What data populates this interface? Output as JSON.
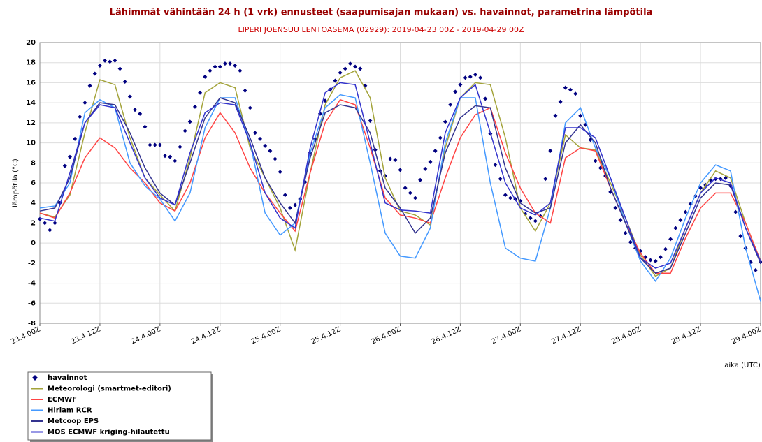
{
  "chart_data": {
    "type": "line",
    "title": "Lähimmät vähintään 24 h (1 vrk) ennusteet (saapumisajan mukaan) vs. havainnot, parametrina lämpötila",
    "subtitle": "LIPERI JOENSUU LENTOASEMA (02929): 2019-04-23 00Z - 2019-04-29 00Z",
    "ylabel": "lämpötila (°C)",
    "xlabel": "aika (UTC)",
    "grid": true,
    "xlim": [
      0,
      144
    ],
    "ylim": [
      -8,
      20
    ],
    "yticks": [
      -8,
      -6,
      -4,
      -2,
      0,
      2,
      4,
      6,
      8,
      10,
      12,
      14,
      16,
      18,
      20
    ],
    "xticks": [
      {
        "value": 0,
        "label": "23.4.00Z"
      },
      {
        "value": 12,
        "label": "23.4.12Z"
      },
      {
        "value": 24,
        "label": "24.4.00Z"
      },
      {
        "value": 36,
        "label": "24.4.12Z"
      },
      {
        "value": 48,
        "label": "25.4.00Z"
      },
      {
        "value": 60,
        "label": "25.4.12Z"
      },
      {
        "value": 72,
        "label": "26.4.00Z"
      },
      {
        "value": 84,
        "label": "26.4.12Z"
      },
      {
        "value": 96,
        "label": "27.4.00Z"
      },
      {
        "value": 108,
        "label": "27.4.12Z"
      },
      {
        "value": 120,
        "label": "28.4.00Z"
      },
      {
        "value": 132,
        "label": "28.4.12Z"
      },
      {
        "value": 144,
        "label": "29.4.00Z"
      }
    ],
    "x": [
      0,
      3,
      6,
      9,
      12,
      15,
      18,
      21,
      24,
      27,
      30,
      33,
      36,
      39,
      42,
      45,
      48,
      51,
      54,
      57,
      60,
      63,
      66,
      69,
      72,
      75,
      78,
      81,
      84,
      87,
      90,
      93,
      96,
      99,
      102,
      105,
      108,
      111,
      114,
      117,
      120,
      123,
      126,
      129,
      132,
      135,
      138,
      141,
      144
    ],
    "series": [
      {
        "name": "havainnot",
        "type": "scatter",
        "color": "#000080",
        "x": [
          0,
          1,
          2,
          3,
          4,
          5,
          6,
          7,
          8,
          9,
          10,
          11,
          12,
          13,
          14,
          15,
          16,
          17,
          18,
          19,
          20,
          21,
          22,
          23,
          24,
          25,
          26,
          27,
          28,
          29,
          30,
          31,
          32,
          33,
          34,
          35,
          36,
          37,
          38,
          39,
          40,
          41,
          42,
          43,
          44,
          45,
          46,
          47,
          48,
          49,
          50,
          51,
          52,
          53,
          54,
          55,
          56,
          57,
          58,
          59,
          60,
          61,
          62,
          63,
          64,
          65,
          66,
          67,
          68,
          69,
          70,
          71,
          72,
          73,
          74,
          75,
          76,
          77,
          78,
          79,
          80,
          81,
          82,
          83,
          84,
          85,
          86,
          87,
          88,
          89,
          90,
          91,
          92,
          93,
          94,
          95,
          96,
          97,
          98,
          99,
          100,
          101,
          102,
          103,
          104,
          105,
          106,
          107,
          108,
          109,
          110,
          111,
          112,
          113,
          114,
          115,
          116,
          117,
          118,
          119,
          120,
          121,
          122,
          123,
          124,
          125,
          126,
          127,
          128,
          129,
          130,
          131,
          132,
          133,
          134,
          135,
          136,
          137,
          138,
          139,
          140,
          141,
          142,
          143,
          144
        ],
        "values": [
          2.4,
          2.0,
          1.3,
          2.0,
          4.0,
          7.7,
          8.6,
          10.4,
          12.6,
          14.0,
          15.7,
          16.9,
          17.7,
          18.2,
          18.1,
          18.2,
          17.4,
          16.1,
          14.6,
          13.3,
          12.9,
          11.6,
          9.8,
          9.8,
          9.8,
          8.7,
          8.6,
          8.2,
          9.6,
          11.2,
          12.1,
          13.6,
          15.0,
          16.6,
          17.2,
          17.6,
          17.6,
          17.9,
          17.9,
          17.7,
          17.2,
          15.2,
          13.5,
          11.0,
          10.4,
          9.7,
          9.2,
          8.4,
          7.1,
          4.8,
          3.5,
          3.8,
          4.4,
          6.1,
          9.0,
          10.4,
          12.9,
          14.2,
          15.3,
          16.2,
          17.0,
          17.4,
          17.9,
          17.6,
          17.4,
          15.7,
          12.2,
          9.3,
          7.2,
          6.7,
          8.4,
          8.3,
          7.3,
          5.5,
          5.0,
          4.5,
          6.3,
          7.4,
          8.1,
          9.2,
          10.5,
          12.1,
          13.8,
          15.1,
          15.8,
          16.5,
          16.6,
          16.8,
          16.5,
          14.4,
          10.9,
          7.8,
          6.4,
          4.8,
          4.5,
          4.4,
          4.2,
          2.9,
          2.5,
          2.2,
          2.7,
          6.4,
          9.2,
          12.7,
          14.1,
          15.5,
          15.3,
          14.9,
          12.7,
          11.8,
          10.3,
          8.2,
          7.5,
          6.7,
          5.1,
          3.5,
          2.3,
          1.0,
          0.1,
          -0.5,
          -0.8,
          -1.4,
          -1.7,
          -1.8,
          -1.4,
          -0.6,
          0.4,
          1.5,
          2.3,
          3.1,
          3.9,
          4.7,
          5.5,
          5.8,
          6.3,
          6.4,
          6.4,
          6.5,
          5.7,
          3.1,
          0.7,
          -0.5,
          -1.9,
          -2.7,
          -1.9
        ]
      },
      {
        "name": "Meteorologi (smartmet-editori)",
        "color": "#a3a33a",
        "values": [
          3.0,
          2.6,
          4.8,
          11.0,
          16.3,
          15.8,
          10.5,
          6.5,
          4.8,
          3.2,
          8.5,
          15.0,
          16.0,
          15.5,
          9.5,
          6.5,
          3.5,
          -0.7,
          7.0,
          13.8,
          16.5,
          17.2,
          14.5,
          6.5,
          3.2,
          2.8,
          1.8,
          9.5,
          14.5,
          16.0,
          15.8,
          10.5,
          3.5,
          1.2,
          4.0,
          10.8,
          9.5,
          9.3,
          6.0,
          2.5,
          -1.2,
          -3.3,
          -2.5,
          1.5,
          5.0,
          7.2,
          6.5,
          2.0,
          -1.8
        ]
      },
      {
        "name": "ECMWF",
        "color": "#ff4444",
        "values": [
          3.0,
          2.5,
          5.0,
          8.5,
          10.5,
          9.5,
          7.5,
          6.0,
          4.0,
          3.2,
          6.0,
          10.5,
          13.0,
          11.0,
          7.5,
          5.0,
          3.0,
          1.2,
          7.0,
          12.0,
          14.3,
          13.8,
          9.5,
          4.5,
          2.8,
          2.5,
          2.0,
          6.5,
          10.5,
          12.8,
          13.5,
          9.0,
          5.5,
          3.0,
          2.0,
          8.5,
          9.5,
          9.2,
          5.5,
          2.0,
          -1.0,
          -3.0,
          -3.0,
          0.5,
          3.5,
          5.0,
          5.0,
          2.0,
          -1.8
        ]
      },
      {
        "name": "Hirlam RCR",
        "color": "#4499ff",
        "values": [
          3.5,
          3.7,
          6.0,
          13.0,
          14.3,
          13.5,
          8.0,
          5.7,
          4.4,
          2.2,
          5.0,
          11.5,
          14.5,
          14.5,
          10.0,
          3.0,
          0.8,
          2.0,
          9.0,
          13.5,
          14.8,
          14.5,
          8.0,
          1.0,
          -1.3,
          -1.5,
          1.5,
          10.0,
          14.5,
          14.5,
          6.0,
          -0.5,
          -1.5,
          -1.8,
          3.5,
          12.0,
          13.5,
          9.5,
          6.5,
          2.0,
          -1.8,
          -3.8,
          -1.5,
          2.5,
          6.0,
          7.8,
          7.2,
          -0.5,
          -5.8
        ]
      },
      {
        "name": "Metcoop EPS",
        "color": "#33338f",
        "values": [
          3.2,
          3.5,
          6.5,
          12.0,
          14.0,
          13.8,
          11.0,
          7.5,
          5.0,
          3.8,
          8.0,
          12.5,
          14.5,
          14.0,
          10.5,
          6.5,
          4.0,
          2.0,
          8.5,
          13.0,
          13.8,
          13.5,
          11.0,
          5.5,
          3.5,
          1.0,
          2.5,
          9.0,
          12.5,
          13.7,
          13.5,
          7.5,
          4.0,
          3.0,
          3.5,
          10.0,
          11.8,
          10.0,
          5.5,
          2.0,
          -1.5,
          -3.0,
          -2.5,
          1.0,
          4.5,
          6.0,
          5.8,
          1.5,
          -2.0
        ]
      },
      {
        "name": "MOS ECMWF kriging-hilautettu",
        "color": "#3333cc",
        "values": [
          2.5,
          2.2,
          7.0,
          12.0,
          13.8,
          13.5,
          10.0,
          6.5,
          4.5,
          3.8,
          9.0,
          13.0,
          14.0,
          13.8,
          10.0,
          5.0,
          2.5,
          1.5,
          9.5,
          15.0,
          16.0,
          15.8,
          10.0,
          4.0,
          3.3,
          3.2,
          3.0,
          11.0,
          14.5,
          15.8,
          11.0,
          6.0,
          3.5,
          2.8,
          4.0,
          11.5,
          11.5,
          10.5,
          6.5,
          2.5,
          -1.5,
          -2.5,
          -2.0,
          1.5,
          5.0,
          6.5,
          6.0,
          1.5,
          -1.8
        ]
      }
    ]
  }
}
